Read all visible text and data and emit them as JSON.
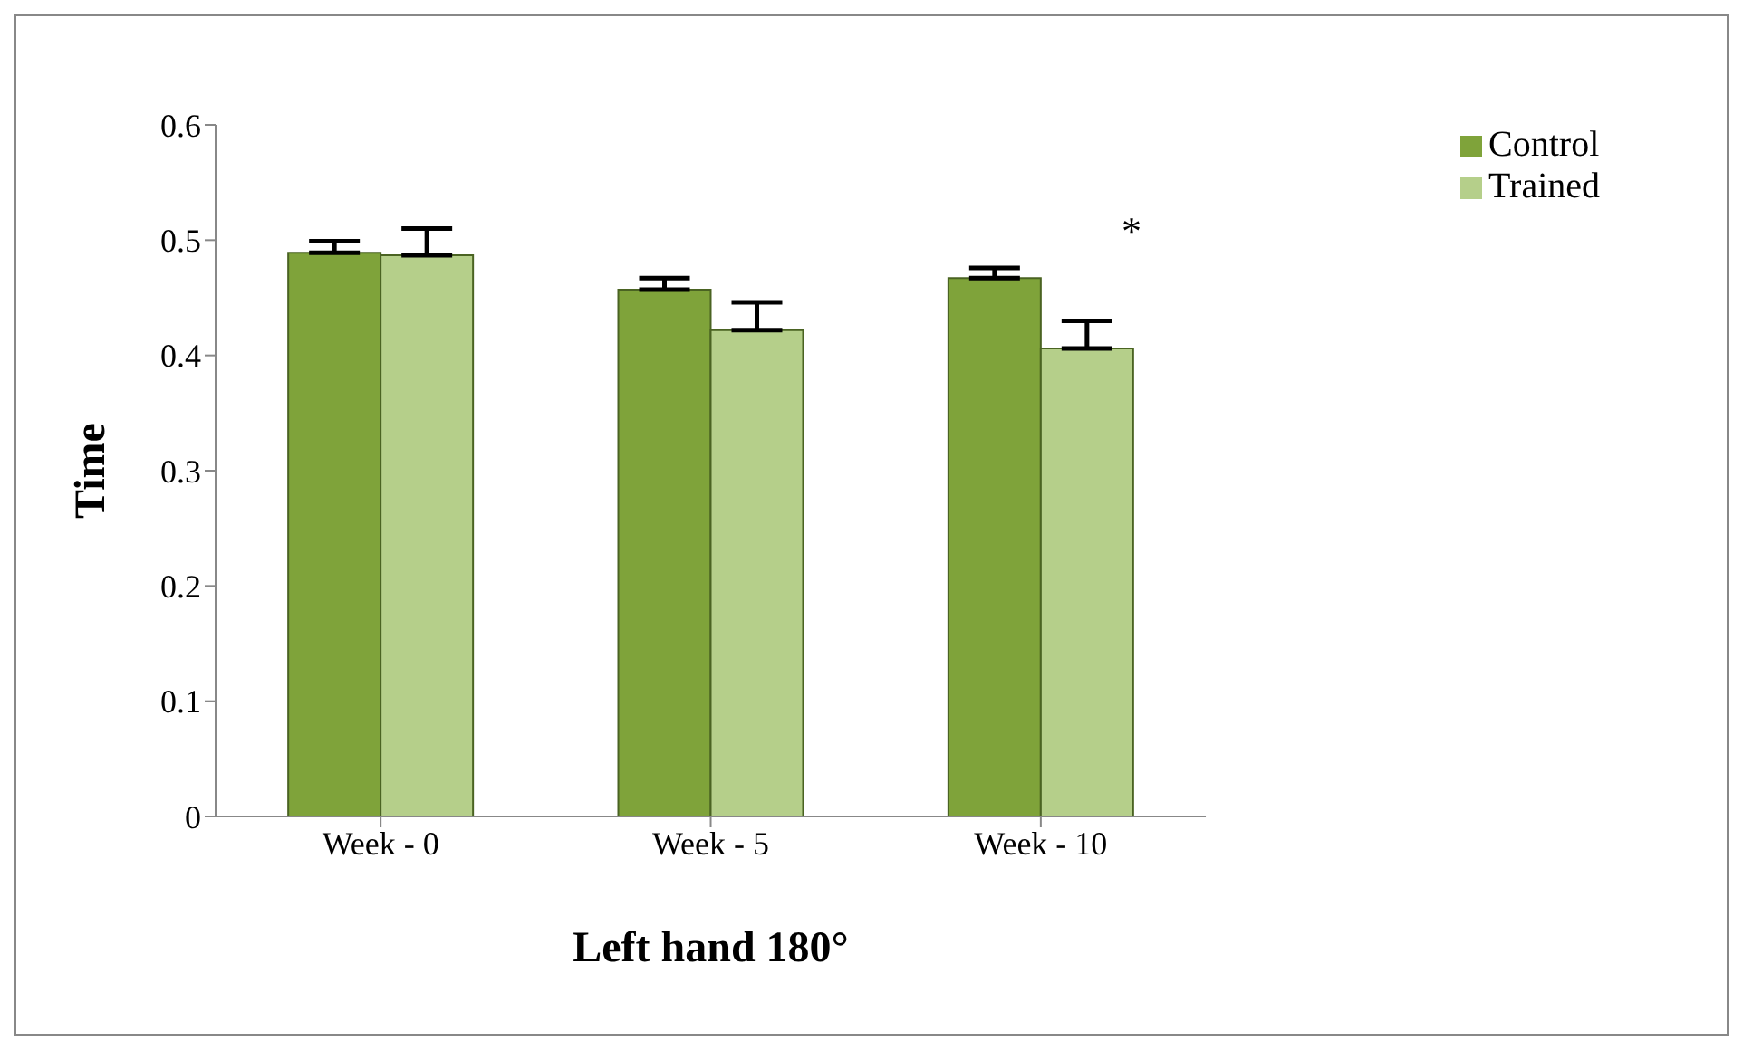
{
  "chart_data": {
    "type": "bar",
    "xlabel": "Left hand 180°",
    "ylabel": "Time",
    "categories": [
      "Week - 0",
      "Week - 5",
      "Week - 10"
    ],
    "series": [
      {
        "name": "Control",
        "color": "#7fa33a",
        "values": [
          0.489,
          0.457,
          0.467
        ],
        "errors": [
          [
            0.489,
            0.499
          ],
          [
            0.457,
            0.467
          ],
          [
            0.467,
            0.476
          ]
        ]
      },
      {
        "name": "Trained",
        "color": "#b5cf8a",
        "values": [
          0.487,
          0.422,
          0.406
        ],
        "errors": [
          [
            0.487,
            0.51
          ],
          [
            0.422,
            0.446
          ],
          [
            0.406,
            0.43
          ]
        ]
      }
    ],
    "ylim": [
      0,
      0.6
    ],
    "yticks": [
      0,
      0.1,
      0.2,
      0.3,
      0.4,
      0.5,
      0.6
    ],
    "grid": false,
    "legend": "top right",
    "annotations": [
      "*"
    ]
  }
}
